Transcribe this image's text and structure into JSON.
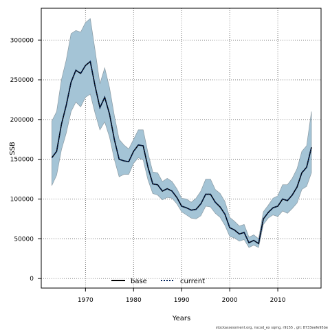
{
  "chart_data": {
    "type": "area",
    "xlabel": "Years",
    "ylabel": "SSB",
    "xlim": [
      1960.8,
      2019.0
    ],
    "ylim": [
      -12000,
      340000
    ],
    "x_ticks": [
      1970,
      1980,
      1990,
      2000,
      2010
    ],
    "x_tick_labels": [
      "1970",
      "1980",
      "1990",
      "2000",
      "2010"
    ],
    "y_ticks": [
      0,
      50000,
      100000,
      150000,
      200000,
      250000,
      300000
    ],
    "y_tick_labels": [
      "0",
      "50000",
      "100000",
      "150000",
      "200000",
      "250000",
      "300000"
    ],
    "grid": true,
    "legend_position": "bottom",
    "footer": "stockassessment.org, nscod_ex sqmg, r9155 , git: 8733eefe95be",
    "colors": {
      "band": "#a4c4d6",
      "band_edge": "#8a9aa3",
      "base": "#000000",
      "current": "#00215a"
    },
    "years": [
      1963,
      1964,
      1965,
      1966,
      1967,
      1968,
      1969,
      1970,
      1971,
      1972,
      1973,
      1974,
      1975,
      1976,
      1977,
      1978,
      1979,
      1980,
      1981,
      1982,
      1983,
      1984,
      1985,
      1986,
      1987,
      1988,
      1989,
      1990,
      1991,
      1992,
      1993,
      1994,
      1995,
      1996,
      1997,
      1998,
      1999,
      2000,
      2001,
      2002,
      2003,
      2004,
      2005,
      2006,
      2007,
      2008,
      2009,
      2010,
      2011,
      2012,
      2013,
      2014,
      2015,
      2016,
      2017
    ],
    "upper": [
      198000,
      210000,
      250000,
      275000,
      308000,
      312000,
      310000,
      322000,
      327000,
      287000,
      245000,
      265000,
      240000,
      205000,
      175000,
      168000,
      163000,
      175000,
      187000,
      187000,
      158000,
      134000,
      133000,
      122000,
      126000,
      122000,
      113000,
      101000,
      100000,
      96000,
      101000,
      110000,
      125000,
      125000,
      112000,
      107000,
      97000,
      77000,
      72000,
      66000,
      68000,
      52000,
      55000,
      50000,
      84000,
      92000,
      101000,
      104000,
      118000,
      118000,
      126000,
      138000,
      160000,
      167000,
      210000
    ],
    "lower": [
      117000,
      130000,
      162000,
      183000,
      210000,
      222000,
      216000,
      228000,
      232000,
      208000,
      187000,
      197000,
      178000,
      150000,
      128000,
      131000,
      131000,
      145000,
      152000,
      149000,
      124000,
      107000,
      105000,
      99000,
      102000,
      101000,
      94000,
      84000,
      80000,
      76000,
      75000,
      79000,
      91000,
      90000,
      82000,
      77000,
      67000,
      53000,
      51000,
      47000,
      49000,
      39000,
      42000,
      39000,
      68000,
      76000,
      80000,
      78000,
      85000,
      82000,
      88000,
      95000,
      112000,
      116000,
      133000
    ],
    "series": [
      {
        "name": "base",
        "style": "solid",
        "values": [
          152000,
          160000,
          194000,
          218000,
          247000,
          262000,
          258000,
          268000,
          273000,
          242000,
          215000,
          228000,
          207000,
          175000,
          150000,
          148000,
          147000,
          160000,
          168000,
          167000,
          140000,
          119000,
          118000,
          110000,
          113000,
          110000,
          102000,
          91000,
          89000,
          86000,
          87000,
          94000,
          106000,
          106000,
          96000,
          90000,
          81000,
          64000,
          61000,
          56000,
          58000,
          45000,
          48000,
          44000,
          75000,
          83000,
          89000,
          91000,
          100000,
          98000,
          105000,
          115000,
          133000,
          140000,
          165000
        ]
      },
      {
        "name": "current",
        "style": "dotted",
        "values": [
          152000,
          160000,
          194000,
          218000,
          247000,
          262000,
          258000,
          268000,
          273000,
          242000,
          215000,
          228000,
          207000,
          175000,
          150000,
          148000,
          147000,
          160000,
          168000,
          167000,
          140000,
          119000,
          118000,
          110000,
          113000,
          110000,
          102000,
          91000,
          89000,
          86000,
          87000,
          94000,
          106000,
          106000,
          96000,
          90000,
          81000,
          64000,
          61000,
          56000,
          58000,
          45000,
          48000,
          44000,
          75000,
          83000,
          89000,
          91000,
          100000,
          98000,
          105000,
          115000,
          133000,
          140000,
          165000
        ]
      }
    ]
  }
}
